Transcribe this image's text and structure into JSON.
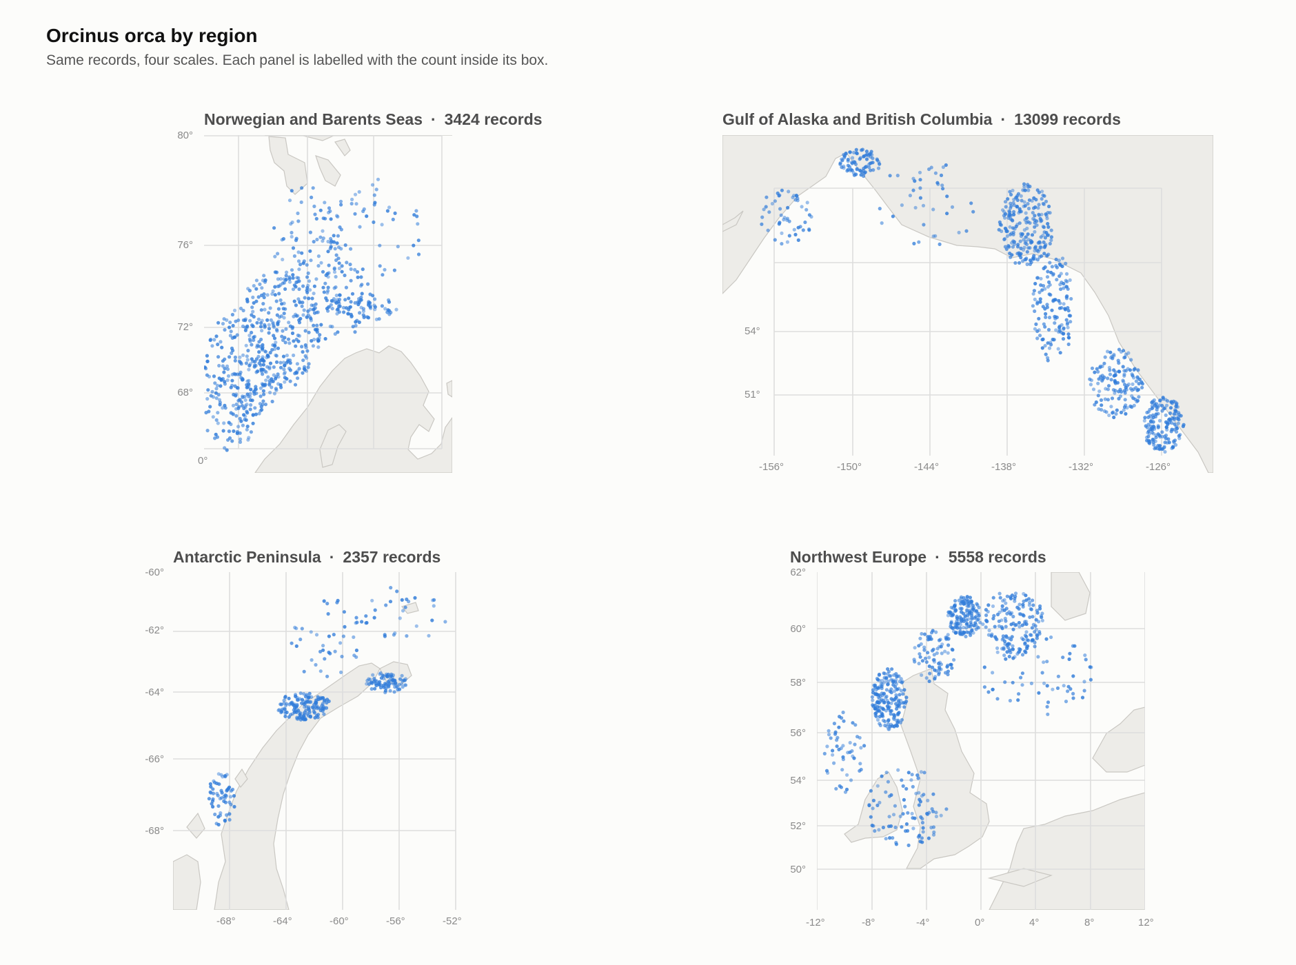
{
  "title": "Orcinus orca by region",
  "subtitle": "Same records, four scales. Each panel is labelled with the count inside its box.",
  "colors": {
    "background": "#fcfcfa",
    "land": "#edece8",
    "land_stroke": "#c9c7c2",
    "grid": "#dddddd",
    "point": "#2f7bd9"
  },
  "panels": [
    {
      "id": "norway",
      "name": "Norwegian and Barents Seas",
      "separator": "·",
      "count_label": "3424 records",
      "y_ticks": [
        "80°",
        "76°",
        "72°",
        "68°"
      ],
      "x_ticks": [
        "0°"
      ]
    },
    {
      "id": "alaska",
      "name": "Gulf of Alaska and British Columbia",
      "separator": "·",
      "count_label": "13099 records",
      "y_ticks": [
        "54°",
        "51°"
      ],
      "x_ticks": [
        "-156°",
        "-150°",
        "-144°",
        "-138°",
        "-132°",
        "-126°"
      ]
    },
    {
      "id": "antarctic",
      "name": "Antarctic Peninsula",
      "separator": "·",
      "count_label": "2357 records",
      "y_ticks": [
        "-60°",
        "-62°",
        "-64°",
        "-66°",
        "-68°"
      ],
      "x_ticks": [
        "-68°",
        "-64°",
        "-60°",
        "-56°",
        "-52°"
      ]
    },
    {
      "id": "nweurope",
      "name": "Northwest Europe",
      "separator": "·",
      "count_label": "5558 records",
      "y_ticks": [
        "62°",
        "60°",
        "58°",
        "56°",
        "54°",
        "52°",
        "50°"
      ],
      "x_ticks": [
        "-12°",
        "-8°",
        "-4°",
        "0°",
        "4°",
        "8°",
        "12°"
      ]
    }
  ]
}
